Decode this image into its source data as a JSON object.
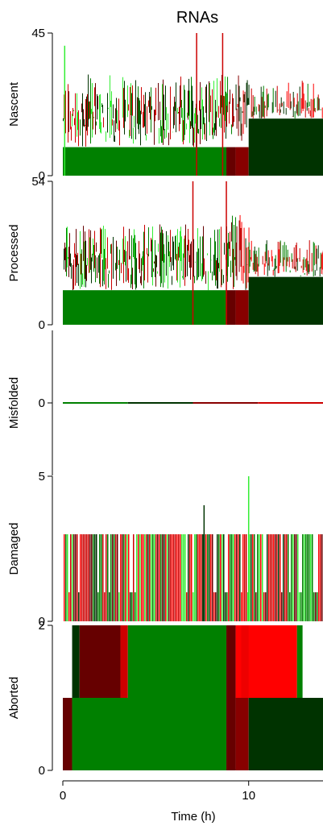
{
  "chart_data": {
    "type": "area",
    "title": "RNAs",
    "xlabel": "Time (h)",
    "xlim": [
      0,
      14
    ],
    "xticks": [
      {
        "value": 0,
        "label": "0"
      },
      {
        "value": 10,
        "label": "10"
      }
    ],
    "colors": {
      "bright_green": "#33ee33",
      "green": "#008000",
      "dark_green": "#003300",
      "black": "#111111",
      "dark_red": "#660000",
      "maroon": "#880000",
      "red": "#cc0000",
      "bright_red": "#ff0000"
    },
    "panels": [
      {
        "name": "nascent",
        "ylabel": "Nascent",
        "ylim": [
          0,
          45
        ],
        "yticks": [
          {
            "value": 0,
            "label": "0"
          },
          {
            "value": 45,
            "label": "45"
          }
        ],
        "segments": [
          {
            "x": [
              0,
              8.8
            ],
            "fill": 9,
            "mean": 22,
            "amp": 10,
            "colors": [
              "#008000",
              "#33ee33",
              "#660000",
              "#003300",
              "#cc0000"
            ]
          },
          {
            "x": [
              8.8,
              9.3
            ],
            "fill": 9,
            "mean": 24,
            "amp": 9,
            "colors": [
              "#660000",
              "#cc0000",
              "#008000"
            ]
          },
          {
            "x": [
              9.3,
              10.0
            ],
            "fill": 9,
            "mean": 24,
            "amp": 9,
            "colors": [
              "#880000",
              "#ff0000",
              "#003300"
            ]
          },
          {
            "x": [
              10.0,
              14
            ],
            "fill": 18,
            "mean": 22,
            "amp": 8,
            "colors": [
              "#003300",
              "#cc0000",
              "#008000",
              "#ff0000"
            ]
          }
        ],
        "spikes": [
          {
            "x": 7.2,
            "y": 45
          },
          {
            "x": 8.6,
            "y": 45
          },
          {
            "x": 0.1,
            "y": 41
          }
        ]
      },
      {
        "name": "processed",
        "ylabel": "Processed",
        "ylim": [
          0,
          54
        ],
        "yticks": [
          {
            "value": 0,
            "label": "0"
          },
          {
            "value": 54,
            "label": "54"
          }
        ],
        "segments": [
          {
            "x": [
              0,
              8.8
            ],
            "fill": 13,
            "mean": 28,
            "amp": 10,
            "colors": [
              "#008000",
              "#33ee33",
              "#660000",
              "#003300",
              "#cc0000"
            ]
          },
          {
            "x": [
              8.8,
              9.3
            ],
            "fill": 13,
            "mean": 32,
            "amp": 10,
            "colors": [
              "#660000",
              "#cc0000",
              "#008000"
            ]
          },
          {
            "x": [
              9.3,
              10.0
            ],
            "fill": 13,
            "mean": 32,
            "amp": 10,
            "colors": [
              "#880000",
              "#ff0000",
              "#003300"
            ]
          },
          {
            "x": [
              10.0,
              14
            ],
            "fill": 18,
            "mean": 25,
            "amp": 7,
            "colors": [
              "#003300",
              "#ff0000",
              "#008000",
              "#cc0000"
            ]
          }
        ],
        "spikes": [
          {
            "x": 7.0,
            "y": 54
          },
          {
            "x": 8.8,
            "y": 54
          }
        ]
      },
      {
        "name": "misfolded",
        "ylabel": "Misfolded",
        "ylim": [
          -1,
          1
        ],
        "yticks": [
          {
            "value": 0,
            "label": "0"
          }
        ],
        "line": {
          "y": 0,
          "colors": [
            "#008000",
            "#003300",
            "#880000",
            "#cc0000"
          ]
        }
      },
      {
        "name": "damaged",
        "ylabel": "Damaged",
        "ylim": [
          0,
          5
        ],
        "yticks": [
          {
            "value": 0,
            "label": "0"
          },
          {
            "value": 5,
            "label": "5"
          }
        ],
        "bars": {
          "levels": [
            1,
            3
          ],
          "colors": [
            "#008000",
            "#003300",
            "#660000",
            "#cc0000",
            "#33ee33",
            "#ff0000"
          ]
        },
        "spikes": [
          {
            "x": 7.6,
            "y": 4,
            "color": "#003300"
          },
          {
            "x": 10.0,
            "y": 5,
            "color": "#33ee33"
          }
        ]
      },
      {
        "name": "aborted",
        "ylabel": "Aborted",
        "ylim": [
          0,
          2
        ],
        "yticks": [
          {
            "value": 0,
            "label": "0"
          },
          {
            "value": 2,
            "label": "2"
          }
        ],
        "blocks": [
          {
            "x": [
              0.0,
              0.5
            ],
            "y": 1,
            "color": "#660000"
          },
          {
            "x": [
              0.5,
              8.8
            ],
            "y": 1,
            "color": "#008000"
          },
          {
            "x": [
              8.8,
              9.3
            ],
            "y": 1,
            "color": "#660000"
          },
          {
            "x": [
              9.3,
              10.0
            ],
            "y": 1,
            "color": "#880000"
          },
          {
            "x": [
              10.0,
              14.0
            ],
            "y": 1,
            "color": "#003300"
          },
          {
            "x": [
              0.5,
              0.9
            ],
            "y": 2,
            "color": "#003300"
          },
          {
            "x": [
              0.9,
              3.1
            ],
            "y": 2,
            "color": "#660000"
          },
          {
            "x": [
              3.1,
              3.5
            ],
            "y": 2,
            "color": "#cc0000"
          },
          {
            "x": [
              3.5,
              8.8
            ],
            "y": 2,
            "color": "#008000"
          },
          {
            "x": [
              8.8,
              9.3
            ],
            "y": 2,
            "color": "#660000"
          },
          {
            "x": [
              9.3,
              12.6
            ],
            "y": 2,
            "color": "#ff0000"
          },
          {
            "x": [
              9.6,
              10.0
            ],
            "y": 2,
            "color": "#ee0000"
          },
          {
            "x": [
              12.6,
              12.9
            ],
            "y": 2,
            "color": "#008000"
          }
        ]
      }
    ]
  }
}
